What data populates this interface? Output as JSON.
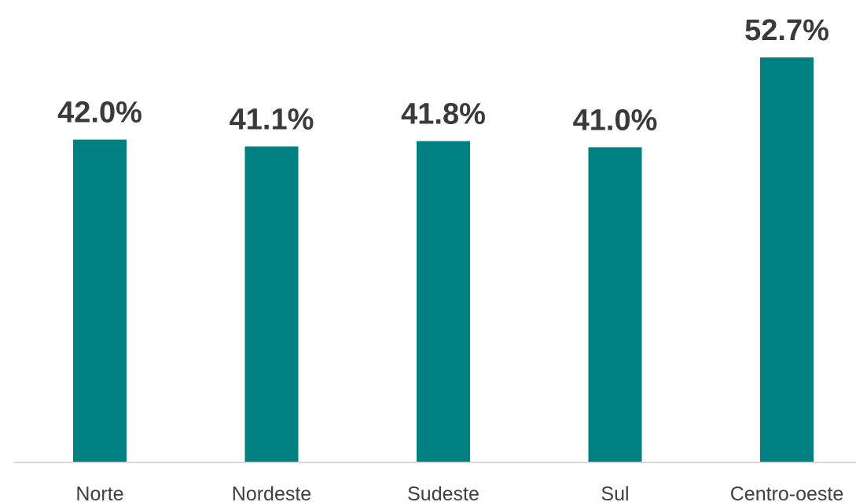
{
  "chart_data": {
    "type": "bar",
    "title": "",
    "xlabel": "",
    "ylabel": "",
    "categories": [
      "Norte",
      "Nordeste",
      "Sudeste",
      "Sul",
      "Centro-oeste"
    ],
    "values": [
      42.0,
      41.1,
      41.8,
      41.0,
      52.7
    ],
    "value_labels": [
      "42.0%",
      "41.1%",
      "41.8%",
      "41.0%",
      "52.7%"
    ],
    "unit": "%",
    "ylim": [
      0,
      55
    ],
    "grid": false,
    "legend": "none",
    "colors": {
      "bar": "#008080",
      "axis": "#d0d0d0",
      "value_text": "#3a3a3a",
      "category_text": "#404040"
    }
  }
}
